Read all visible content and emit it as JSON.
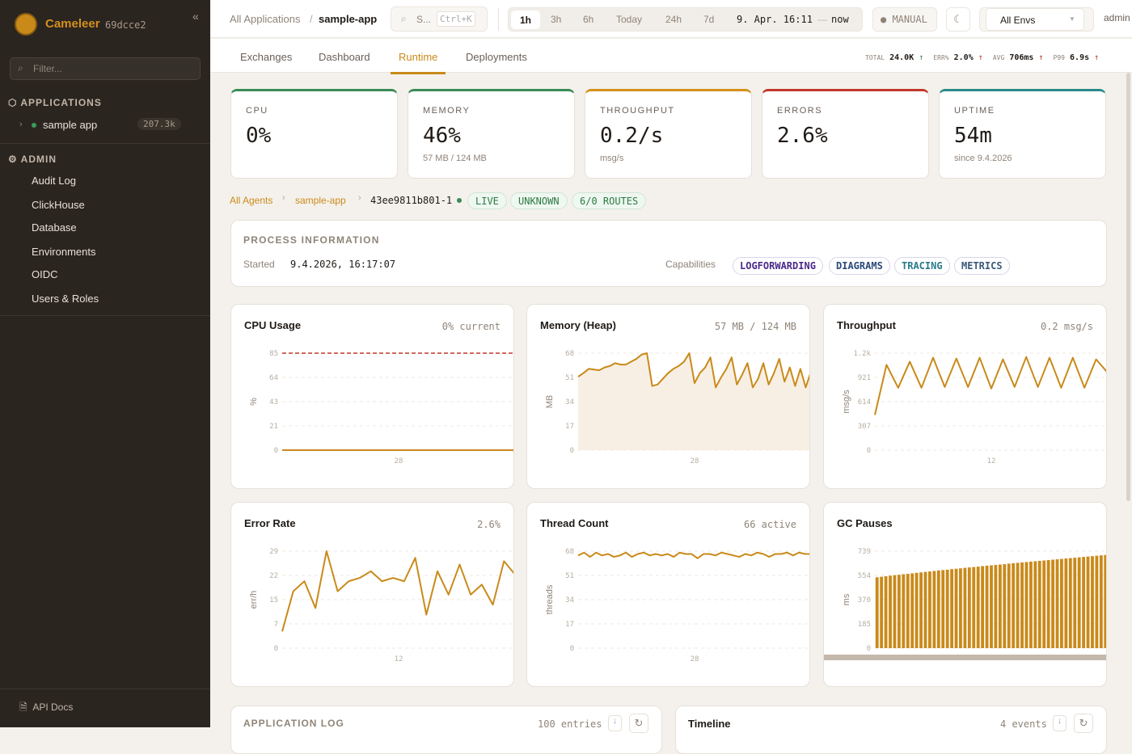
{
  "sidebar": {
    "brand": "Cameleer",
    "version": "69dcce2",
    "filter_placeholder": "Filter...",
    "applications_label": "APPLICATIONS",
    "apps": [
      {
        "name": "sample app",
        "count": "207.3k"
      }
    ],
    "admin_label": "ADMIN",
    "admin_items": [
      "Audit Log",
      "ClickHouse",
      "Database",
      "Environments",
      "OIDC",
      "Users & Roles"
    ],
    "api_docs": "API Docs"
  },
  "topbar": {
    "breadcrumb_root": "All Applications",
    "breadcrumb_sep": "/",
    "breadcrumb_current": "sample-app",
    "search_placeholder": "S...",
    "search_shortcut": "Ctrl+K",
    "time_ranges": [
      "1h",
      "3h",
      "6h",
      "Today",
      "24h",
      "7d"
    ],
    "active_range": "1h",
    "range_from": "9. Apr. 16:11",
    "range_dash": "—",
    "range_to": "now",
    "refresh_mode": "MANUAL",
    "env_select": "All Envs",
    "user": "admin"
  },
  "tabs": [
    "Exchanges",
    "Dashboard",
    "Runtime",
    "Deployments"
  ],
  "active_tab": "Runtime",
  "summary": {
    "total_label": "TOTAL",
    "total": "24.0K",
    "err_label": "ERR%",
    "err": "2.0%",
    "avg_label": "AVG",
    "avg": "706ms",
    "p99_label": "P99",
    "p99": "6.9s"
  },
  "kpis": [
    {
      "label": "CPU",
      "value": "0%",
      "sub": "",
      "color": "#3a8a55"
    },
    {
      "label": "MEMORY",
      "value": "46%",
      "sub": "57 MB / 124 MB",
      "color": "#3a8a55"
    },
    {
      "label": "THROUGHPUT",
      "value": "0.2/s",
      "sub": "msg/s",
      "color": "#d4901c"
    },
    {
      "label": "ERRORS",
      "value": "2.6%",
      "sub": "",
      "color": "#c0392b"
    },
    {
      "label": "UPTIME",
      "value": "54m",
      "sub": "since 9.4.2026",
      "color": "#2a8a8a"
    }
  ],
  "agent": {
    "all_agents": "All Agents",
    "app": "sample-app",
    "id": "43ee9811b801-1",
    "badges": [
      "LIVE",
      "UNKNOWN",
      "6/0 ROUTES"
    ]
  },
  "process": {
    "title": "PROCESS INFORMATION",
    "started_label": "Started",
    "started": "9.4.2026, 16:17:07",
    "capabilities_label": "Capabilities",
    "capabilities": [
      {
        "name": "LOGFORWARDING",
        "color": "#4a2a8a"
      },
      {
        "name": "DIAGRAMS",
        "color": "#2a4a7a"
      },
      {
        "name": "TRACING",
        "color": "#2a7a8a"
      },
      {
        "name": "METRICS",
        "color": "#3a5a7a"
      }
    ]
  },
  "chart_data": [
    {
      "type": "line",
      "title": "CPU Usage",
      "value": "0% current",
      "ylabel": "%",
      "yticks": [
        "0",
        "21",
        "43",
        "64",
        "85"
      ],
      "ylim": [
        0,
        85
      ],
      "xtick": "28",
      "threshold": 85,
      "values": [
        0,
        0,
        0,
        0,
        0,
        0,
        0,
        0,
        0,
        0,
        0,
        0,
        0,
        0,
        0,
        0,
        0,
        0,
        0,
        0
      ]
    },
    {
      "type": "area",
      "title": "Memory (Heap)",
      "value": "57 MB / 124 MB",
      "ylabel": "MB",
      "yticks": [
        "0",
        "17",
        "34",
        "51",
        "68"
      ],
      "ylim": [
        0,
        68
      ],
      "xtick": "28",
      "values": [
        51.5,
        54,
        57,
        56.5,
        56,
        58,
        59,
        61,
        60,
        60,
        62,
        64,
        67,
        68,
        45,
        46,
        50,
        54,
        57,
        59,
        62,
        68,
        47,
        54,
        58,
        65,
        44,
        51,
        57,
        65,
        46,
        53,
        61,
        44,
        50,
        61,
        46,
        54,
        64,
        48,
        58,
        45,
        57,
        44,
        55
      ]
    },
    {
      "type": "line",
      "title": "Throughput",
      "value": "0.2 msg/s",
      "ylabel": "msg/s",
      "yticks": [
        "0",
        "307",
        "614",
        "921",
        "1.2k"
      ],
      "ylim": [
        0,
        1228
      ],
      "xtick": "12",
      "values": [
        446,
        1080,
        790,
        1120,
        790,
        1170,
        800,
        1160,
        800,
        1170,
        780,
        1150,
        800,
        1180,
        800,
        1170,
        790,
        1170,
        790,
        1150,
        980
      ]
    },
    {
      "type": "line",
      "title": "Error Rate",
      "value": "2.6%",
      "ylabel": "err/h",
      "yticks": [
        "0",
        "7",
        "15",
        "22",
        "29"
      ],
      "ylim": [
        0,
        29
      ],
      "xtick": "12",
      "values": [
        5,
        17,
        20,
        12,
        29,
        17,
        20,
        21,
        23,
        20,
        21,
        20,
        27,
        10,
        23,
        16,
        25,
        16,
        19,
        13,
        26,
        22
      ]
    },
    {
      "type": "line",
      "title": "Thread Count",
      "value": "66 active",
      "ylabel": "threads",
      "yticks": [
        "0",
        "17",
        "34",
        "51",
        "68"
      ],
      "ylim": [
        0,
        68
      ],
      "xtick": "28",
      "values": [
        65,
        67,
        64,
        67,
        65,
        66,
        64,
        65,
        67,
        64,
        66,
        67,
        65,
        66,
        65,
        66,
        64,
        67,
        66,
        66,
        63,
        66,
        66,
        65,
        67,
        66,
        65,
        64,
        66,
        65,
        67,
        66,
        64,
        66,
        66,
        67,
        65,
        67,
        66,
        66
      ]
    },
    {
      "type": "bar",
      "title": "GC Pauses",
      "value": "",
      "ylabel": "ms",
      "yticks": [
        "0",
        "185",
        "370",
        "554",
        "739"
      ],
      "ylim": [
        0,
        739
      ],
      "xtick": "",
      "values": [
        540,
        544,
        548,
        552,
        556,
        559,
        563,
        566,
        570,
        574,
        577,
        581,
        584,
        588,
        592,
        595,
        598,
        602,
        605,
        608,
        612,
        615,
        618,
        621,
        625,
        628,
        631,
        634,
        637,
        640,
        644,
        647,
        650,
        653,
        656,
        659,
        662,
        665,
        668,
        671,
        674,
        677,
        680,
        683,
        686,
        689,
        692,
        695,
        698,
        701,
        704,
        707,
        710
      ]
    }
  ],
  "log": {
    "title": "APPLICATION LOG",
    "count": "100 entries"
  },
  "timeline": {
    "title": "Timeline",
    "count": "4 events"
  }
}
